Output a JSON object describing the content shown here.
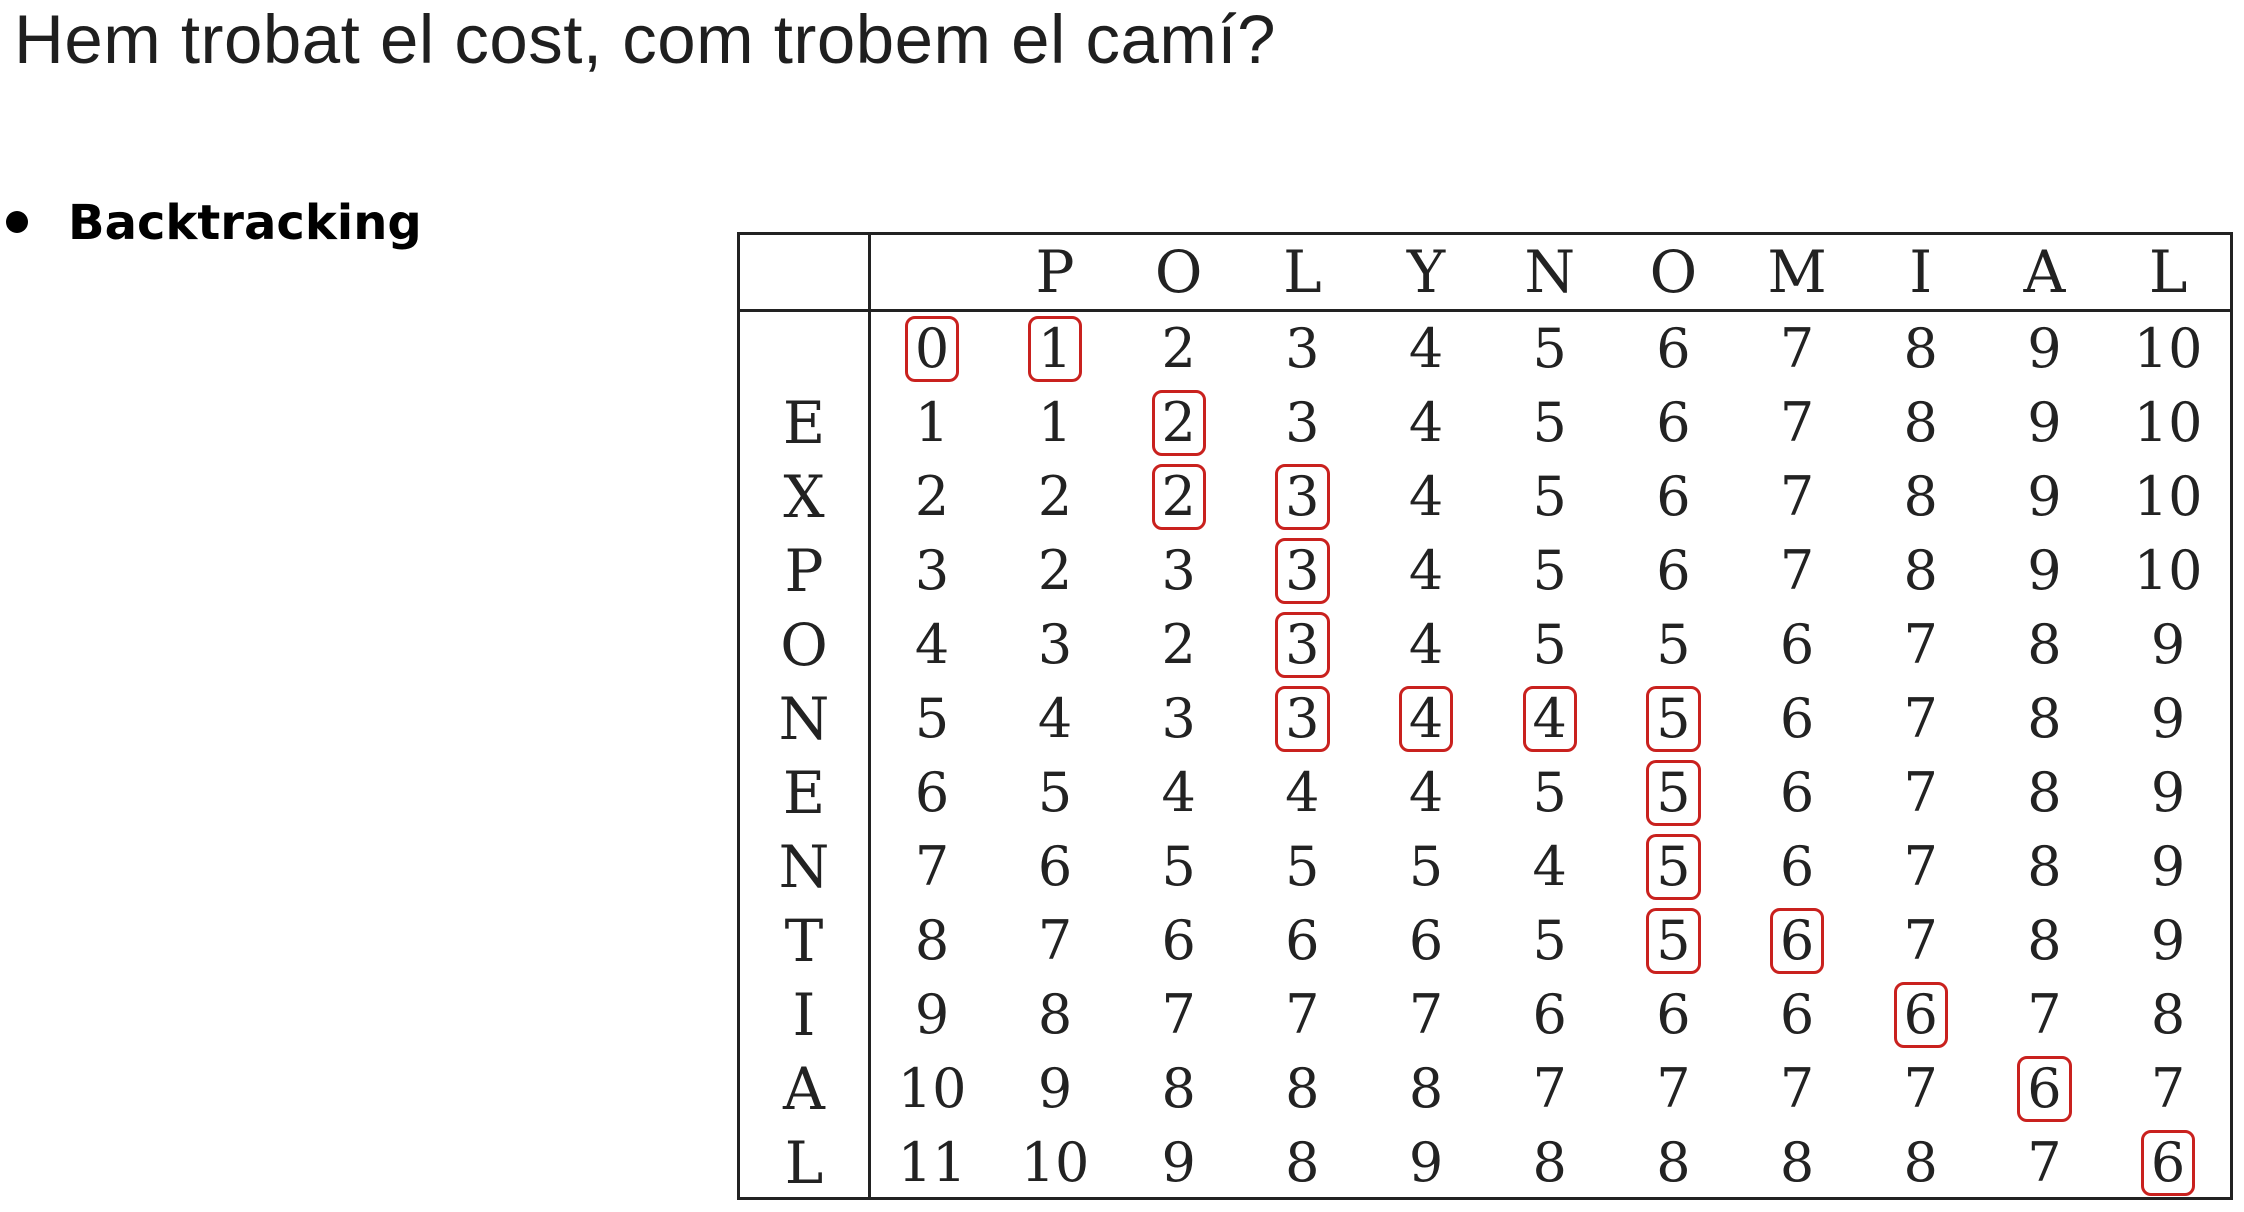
{
  "title": "Hem trobat el cost, com trobem el camí?",
  "bullet": {
    "label": "Backtracking"
  },
  "table": {
    "columns": [
      "",
      "P",
      "O",
      "L",
      "Y",
      "N",
      "O",
      "M",
      "I",
      "A",
      "L"
    ],
    "rows": [
      {
        "label": "",
        "values": [
          "0",
          "1",
          "2",
          "3",
          "4",
          "5",
          "6",
          "7",
          "8",
          "9",
          "10"
        ],
        "boxed": [
          0,
          1
        ]
      },
      {
        "label": "E",
        "values": [
          "1",
          "1",
          "2",
          "3",
          "4",
          "5",
          "6",
          "7",
          "8",
          "9",
          "10"
        ],
        "boxed": [
          2
        ]
      },
      {
        "label": "X",
        "values": [
          "2",
          "2",
          "2",
          "3",
          "4",
          "5",
          "6",
          "7",
          "8",
          "9",
          "10"
        ],
        "boxed": [
          2,
          3
        ]
      },
      {
        "label": "P",
        "values": [
          "3",
          "2",
          "3",
          "3",
          "4",
          "5",
          "6",
          "7",
          "8",
          "9",
          "10"
        ],
        "boxed": [
          3
        ]
      },
      {
        "label": "O",
        "values": [
          "4",
          "3",
          "2",
          "3",
          "4",
          "5",
          "5",
          "6",
          "7",
          "8",
          "9"
        ],
        "boxed": [
          3
        ]
      },
      {
        "label": "N",
        "values": [
          "5",
          "4",
          "3",
          "3",
          "4",
          "4",
          "5",
          "6",
          "7",
          "8",
          "9"
        ],
        "boxed": [
          3,
          4,
          5,
          6
        ]
      },
      {
        "label": "E",
        "values": [
          "6",
          "5",
          "4",
          "4",
          "4",
          "5",
          "5",
          "6",
          "7",
          "8",
          "9"
        ],
        "boxed": [
          6
        ]
      },
      {
        "label": "N",
        "values": [
          "7",
          "6",
          "5",
          "5",
          "5",
          "4",
          "5",
          "6",
          "7",
          "8",
          "9"
        ],
        "boxed": [
          6
        ]
      },
      {
        "label": "T",
        "values": [
          "8",
          "7",
          "6",
          "6",
          "6",
          "5",
          "5",
          "6",
          "7",
          "8",
          "9"
        ],
        "boxed": [
          6,
          7
        ]
      },
      {
        "label": "I",
        "values": [
          "9",
          "8",
          "7",
          "7",
          "7",
          "6",
          "6",
          "6",
          "6",
          "7",
          "8"
        ],
        "boxed": [
          8
        ]
      },
      {
        "label": "A",
        "values": [
          "10",
          "9",
          "8",
          "8",
          "8",
          "7",
          "7",
          "7",
          "7",
          "6",
          "7"
        ],
        "boxed": [
          9
        ]
      },
      {
        "label": "L",
        "values": [
          "11",
          "10",
          "9",
          "8",
          "9",
          "8",
          "8",
          "8",
          "8",
          "7",
          "6"
        ],
        "boxed": [
          10
        ]
      }
    ],
    "highlight_color": "#c9211e"
  }
}
